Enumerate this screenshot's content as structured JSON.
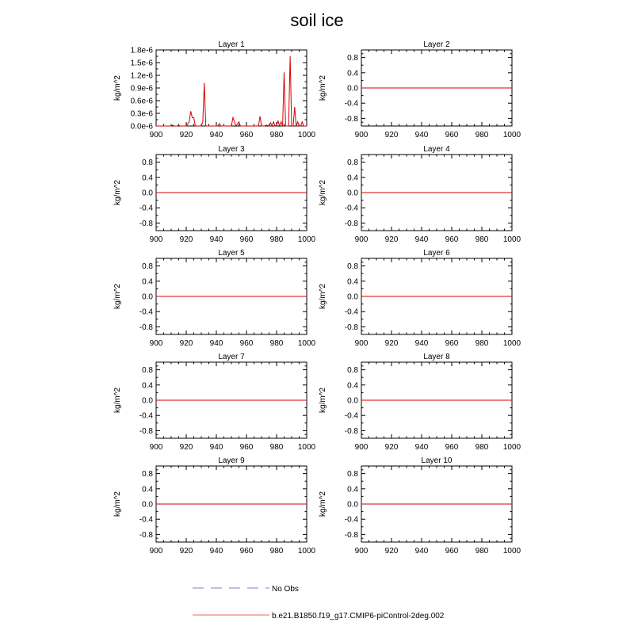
{
  "figure": {
    "title": "soil ice",
    "legend": [
      {
        "name": "No Obs",
        "color": "#9999dd",
        "style": "dashed"
      },
      {
        "name": "b.e21.B1850.f19_g17.CMIP6-piControl-2deg.002",
        "color": "#ee8888",
        "style": "solid"
      }
    ],
    "line_color": "#d40000"
  },
  "chart_data": [
    {
      "type": "line",
      "title": "Layer 1",
      "ylabel": "kg/m^2",
      "xlim": [
        900,
        1000
      ],
      "ylim": [
        0,
        1.8e-06
      ],
      "xticks": [
        "900",
        "920",
        "940",
        "960",
        "980",
        "1000"
      ],
      "yticks": [
        0,
        3e-07,
        6e-07,
        9e-07,
        1.2e-06,
        1.5e-06,
        1.8e-06
      ],
      "ytick_labels": [
        "0.0e-6",
        "0.3e-6",
        "0.6e-6",
        "0.9e-6",
        "1.2e-6",
        "1.5e-6",
        "1.8e-6"
      ],
      "series": [
        {
          "x": [
            900,
            910,
            911,
            912,
            914,
            915,
            916,
            917,
            920,
            922,
            923,
            924,
            925,
            926,
            927,
            928,
            930,
            931,
            932,
            933,
            934,
            935,
            940,
            941,
            942,
            943,
            944,
            950,
            951,
            952,
            953,
            955,
            956,
            957,
            960,
            965,
            968,
            969,
            970,
            972,
            973,
            975,
            976,
            977,
            978,
            979,
            980,
            981,
            982,
            983,
            984,
            985,
            986,
            987,
            988,
            989,
            990,
            991,
            992,
            993,
            994,
            995,
            996,
            997,
            998,
            999,
            1000
          ],
          "y": [
            0,
            0,
            2e-08,
            0,
            0,
            2e-08,
            0,
            0,
            0,
            1e-07,
            3.5e-07,
            2e-07,
            2e-07,
            0,
            0,
            0,
            0,
            1e-07,
            1.02e-06,
            0,
            0,
            0,
            0,
            0,
            6e-08,
            0,
            0,
            0,
            2e-07,
            1e-07,
            0,
            1e-07,
            0,
            0,
            0,
            0,
            0,
            2.3e-07,
            0,
            0,
            2e-08,
            0,
            8e-08,
            0,
            1e-07,
            0,
            2e-08,
            1.2e-07,
            0,
            1e-07,
            0,
            1.27e-06,
            0,
            0,
            0,
            1.65e-06,
            0,
            0,
            4.5e-07,
            0,
            1e-07,
            0,
            0,
            1e-07,
            0,
            0,
            0
          ]
        }
      ]
    },
    {
      "type": "line",
      "title": "Layer 2",
      "ylabel": "kg/m^2",
      "xlim": [
        900,
        1000
      ],
      "ylim": [
        -1,
        1
      ],
      "xticks": [
        "900",
        "920",
        "940",
        "960",
        "980",
        "1000"
      ],
      "yticks": [
        -0.8,
        -0.4,
        0,
        0.4,
        0.8
      ],
      "ytick_labels": [
        "-0.8",
        "-0.4",
        "0.0",
        "0.4",
        "0.8"
      ],
      "series": [
        {
          "x": [
            900,
            1000
          ],
          "y": [
            0,
            0
          ]
        }
      ]
    },
    {
      "type": "line",
      "title": "Layer 3",
      "ylabel": "kg/m^2",
      "xlim": [
        900,
        1000
      ],
      "ylim": [
        -1,
        1
      ],
      "xticks": [
        "900",
        "920",
        "940",
        "960",
        "980",
        "1000"
      ],
      "yticks": [
        -0.8,
        -0.4,
        0,
        0.4,
        0.8
      ],
      "ytick_labels": [
        "-0.8",
        "-0.4",
        "0.0",
        "0.4",
        "0.8"
      ],
      "series": [
        {
          "x": [
            900,
            1000
          ],
          "y": [
            0,
            0
          ]
        }
      ]
    },
    {
      "type": "line",
      "title": "Layer 4",
      "ylabel": "kg/m^2",
      "xlim": [
        900,
        1000
      ],
      "ylim": [
        -1,
        1
      ],
      "xticks": [
        "900",
        "920",
        "940",
        "960",
        "980",
        "1000"
      ],
      "yticks": [
        -0.8,
        -0.4,
        0,
        0.4,
        0.8
      ],
      "ytick_labels": [
        "-0.8",
        "-0.4",
        "0.0",
        "0.4",
        "0.8"
      ],
      "series": [
        {
          "x": [
            900,
            1000
          ],
          "y": [
            0,
            0
          ]
        }
      ]
    },
    {
      "type": "line",
      "title": "Layer 5",
      "ylabel": "kg/m^2",
      "xlim": [
        900,
        1000
      ],
      "ylim": [
        -1,
        1
      ],
      "xticks": [
        "900",
        "920",
        "940",
        "960",
        "980",
        "1000"
      ],
      "yticks": [
        -0.8,
        -0.4,
        0,
        0.4,
        0.8
      ],
      "ytick_labels": [
        "-0.8",
        "-0.4",
        "0.0",
        "0.4",
        "0.8"
      ],
      "series": [
        {
          "x": [
            900,
            1000
          ],
          "y": [
            0,
            0
          ]
        }
      ]
    },
    {
      "type": "line",
      "title": "Layer 6",
      "ylabel": "kg/m^2",
      "xlim": [
        900,
        1000
      ],
      "ylim": [
        -1,
        1
      ],
      "xticks": [
        "900",
        "920",
        "940",
        "960",
        "980",
        "1000"
      ],
      "yticks": [
        -0.8,
        -0.4,
        0,
        0.4,
        0.8
      ],
      "ytick_labels": [
        "-0.8",
        "-0.4",
        "0.0",
        "0.4",
        "0.8"
      ],
      "series": [
        {
          "x": [
            900,
            1000
          ],
          "y": [
            0,
            0
          ]
        }
      ]
    },
    {
      "type": "line",
      "title": "Layer 7",
      "ylabel": "kg/m^2",
      "xlim": [
        900,
        1000
      ],
      "ylim": [
        -1,
        1
      ],
      "xticks": [
        "900",
        "920",
        "940",
        "960",
        "980",
        "1000"
      ],
      "yticks": [
        -0.8,
        -0.4,
        0,
        0.4,
        0.8
      ],
      "ytick_labels": [
        "-0.8",
        "-0.4",
        "0.0",
        "0.4",
        "0.8"
      ],
      "series": [
        {
          "x": [
            900,
            1000
          ],
          "y": [
            0,
            0
          ]
        }
      ]
    },
    {
      "type": "line",
      "title": "Layer 8",
      "ylabel": "kg/m^2",
      "xlim": [
        900,
        1000
      ],
      "ylim": [
        -1,
        1
      ],
      "xticks": [
        "900",
        "920",
        "940",
        "960",
        "980",
        "1000"
      ],
      "yticks": [
        -0.8,
        -0.4,
        0,
        0.4,
        0.8
      ],
      "ytick_labels": [
        "-0.8",
        "-0.4",
        "0.0",
        "0.4",
        "0.8"
      ],
      "series": [
        {
          "x": [
            900,
            1000
          ],
          "y": [
            0,
            0
          ]
        }
      ]
    },
    {
      "type": "line",
      "title": "Layer 9",
      "ylabel": "kg/m^2",
      "xlim": [
        900,
        1000
      ],
      "ylim": [
        -1,
        1
      ],
      "xticks": [
        "900",
        "920",
        "940",
        "960",
        "980",
        "1000"
      ],
      "yticks": [
        -0.8,
        -0.4,
        0,
        0.4,
        0.8
      ],
      "ytick_labels": [
        "-0.8",
        "-0.4",
        "0.0",
        "0.4",
        "0.8"
      ],
      "series": [
        {
          "x": [
            900,
            1000
          ],
          "y": [
            0,
            0
          ]
        }
      ]
    },
    {
      "type": "line",
      "title": "Layer 10",
      "ylabel": "kg/m^2",
      "xlim": [
        900,
        1000
      ],
      "ylim": [
        -1,
        1
      ],
      "xticks": [
        "900",
        "920",
        "940",
        "960",
        "980",
        "1000"
      ],
      "yticks": [
        -0.8,
        -0.4,
        0,
        0.4,
        0.8
      ],
      "ytick_labels": [
        "-0.8",
        "-0.4",
        "0.0",
        "0.4",
        "0.8"
      ],
      "series": [
        {
          "x": [
            900,
            1000
          ],
          "y": [
            0,
            0
          ]
        }
      ]
    }
  ]
}
